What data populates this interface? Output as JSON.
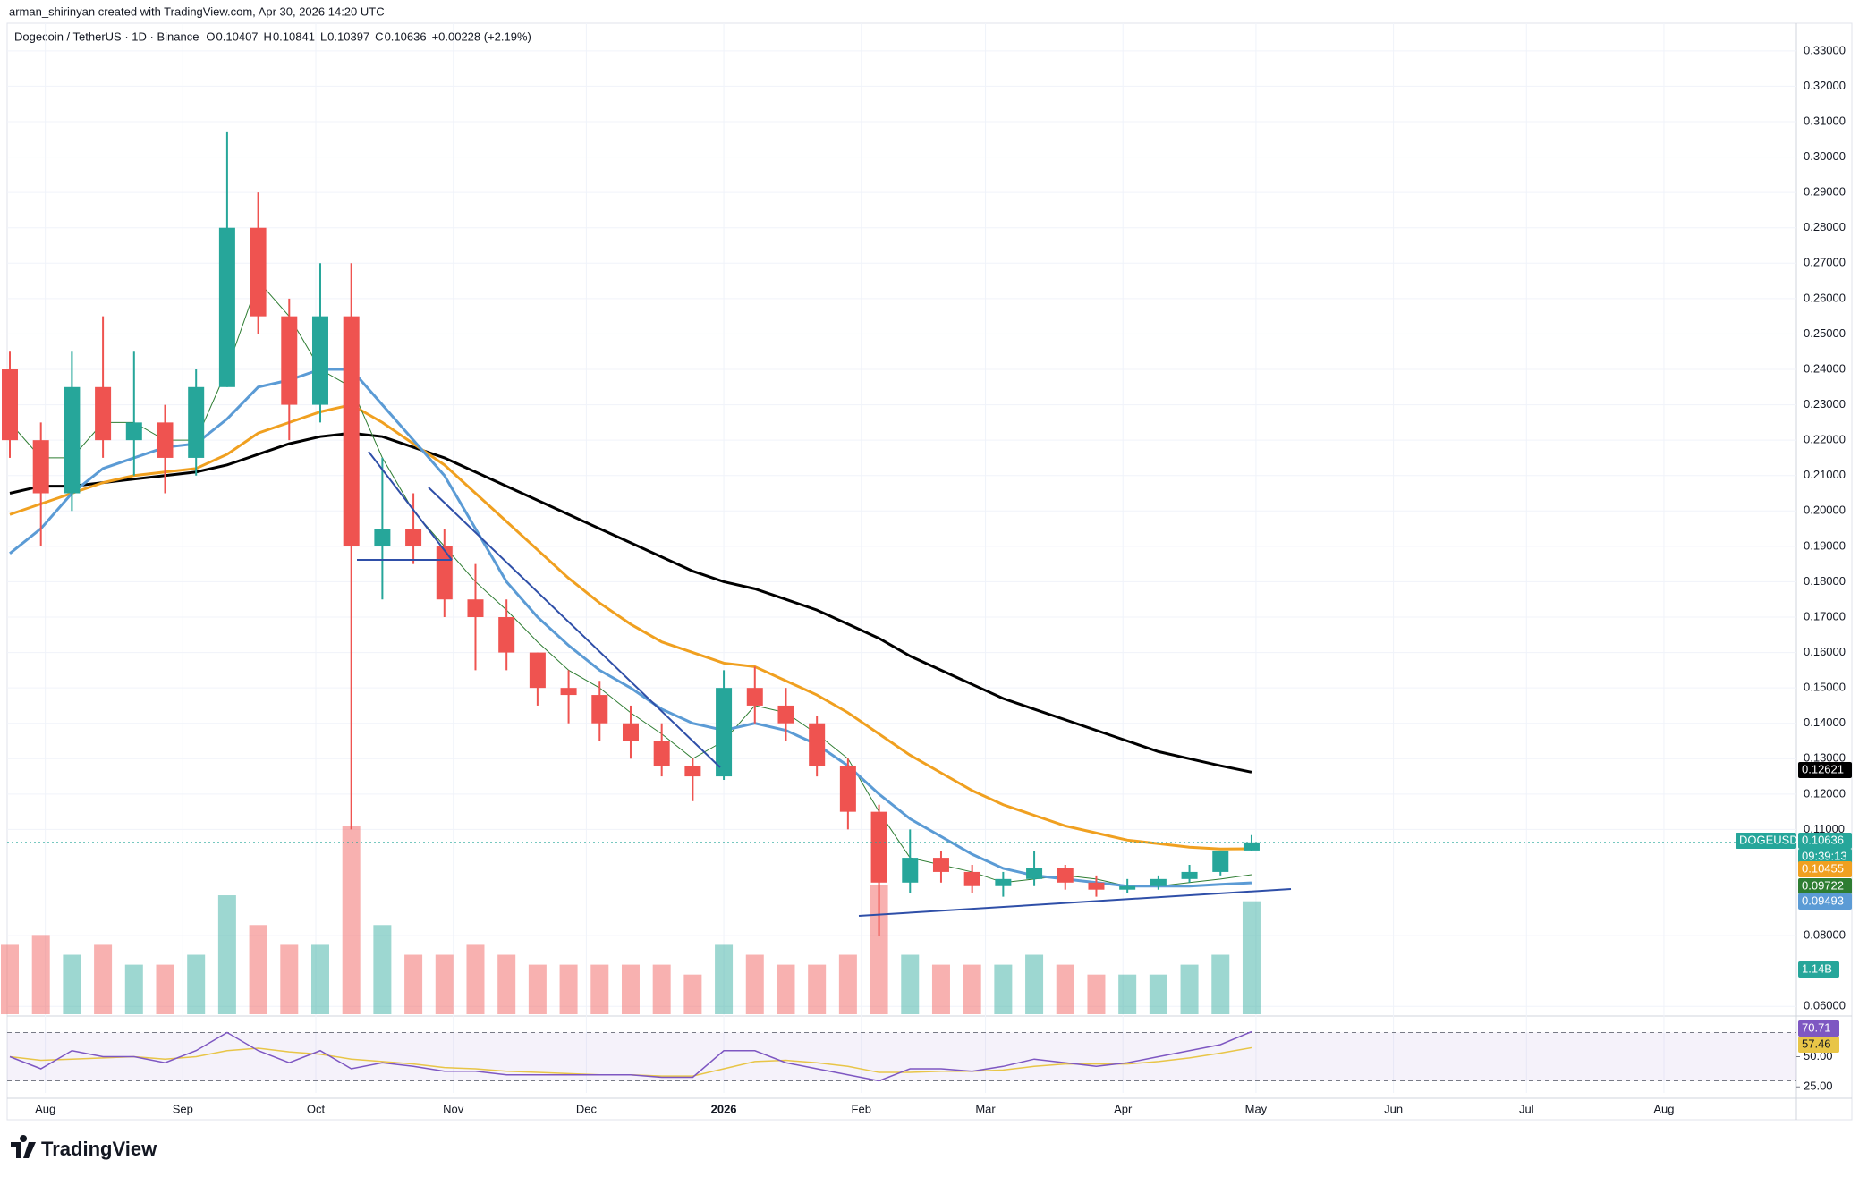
{
  "header": {
    "credit": "arman_shirinyan created with TradingView.com, Apr 30, 2026 14:20 UTC",
    "brand": "TradingView"
  },
  "chart_data": {
    "type": "candlestick",
    "title": "Dogecoin / TetherUS · 1D · Binance",
    "ohlc_letters": [
      "O",
      "H",
      "L",
      "C"
    ],
    "change_label": "+0.00228 (+2.19%)",
    "symbol_tag": "DOGEUSDT",
    "countdown": "09:39:13",
    "months": [
      "Aug",
      "Sep",
      "Oct",
      "Nov",
      "Dec",
      "2026",
      "Feb",
      "Mar",
      "Apr",
      "May",
      "Jun",
      "Jul",
      "Aug"
    ],
    "up_color": "#26a69a",
    "down_color": "#ef5350",
    "grid": true,
    "ylim": [
      0.0578,
      0.3378
    ],
    "yticks": [
      {
        "value": 0.33,
        "label": "0.33000"
      },
      {
        "value": 0.32,
        "label": "0.32000"
      },
      {
        "value": 0.31,
        "label": "0.31000"
      },
      {
        "value": 0.3,
        "label": "0.30000"
      },
      {
        "value": 0.29,
        "label": "0.29000"
      },
      {
        "value": 0.28,
        "label": "0.28000"
      },
      {
        "value": 0.27,
        "label": "0.27000"
      },
      {
        "value": 0.26,
        "label": "0.26000"
      },
      {
        "value": 0.25,
        "label": "0.25000"
      },
      {
        "value": 0.24,
        "label": "0.24000"
      },
      {
        "value": 0.23,
        "label": "0.23000"
      },
      {
        "value": 0.22,
        "label": "0.22000"
      },
      {
        "value": 0.21,
        "label": "0.21000"
      },
      {
        "value": 0.2,
        "label": "0.20000"
      },
      {
        "value": 0.19,
        "label": "0.19000"
      },
      {
        "value": 0.18,
        "label": "0.18000"
      },
      {
        "value": 0.17,
        "label": "0.17000"
      },
      {
        "value": 0.16,
        "label": "0.16000"
      },
      {
        "value": 0.15,
        "label": "0.15000"
      },
      {
        "value": 0.14,
        "label": "0.14000"
      },
      {
        "value": 0.13,
        "label": "0.13000"
      },
      {
        "value": 0.12,
        "label": "0.12000"
      },
      {
        "value": 0.11,
        "label": "0.11000"
      },
      {
        "value": 0.08,
        "label": "0.08000"
      },
      {
        "value": 0.06,
        "label": "0.06000"
      }
    ],
    "candles": [
      [
        0.24,
        0.245,
        0.215,
        0.22
      ],
      [
        0.22,
        0.225,
        0.19,
        0.205
      ],
      [
        0.205,
        0.245,
        0.2,
        0.235
      ],
      [
        0.235,
        0.255,
        0.215,
        0.22
      ],
      [
        0.22,
        0.245,
        0.21,
        0.225
      ],
      [
        0.225,
        0.23,
        0.205,
        0.215
      ],
      [
        0.215,
        0.24,
        0.21,
        0.235
      ],
      [
        0.235,
        0.307,
        0.235,
        0.28
      ],
      [
        0.28,
        0.29,
        0.25,
        0.255
      ],
      [
        0.255,
        0.26,
        0.22,
        0.23
      ],
      [
        0.23,
        0.27,
        0.225,
        0.255
      ],
      [
        0.255,
        0.27,
        0.11,
        0.19
      ],
      [
        0.19,
        0.215,
        0.175,
        0.195
      ],
      [
        0.195,
        0.205,
        0.185,
        0.19
      ],
      [
        0.19,
        0.195,
        0.17,
        0.175
      ],
      [
        0.175,
        0.185,
        0.155,
        0.17
      ],
      [
        0.17,
        0.175,
        0.155,
        0.16
      ],
      [
        0.16,
        0.16,
        0.145,
        0.15
      ],
      [
        0.15,
        0.155,
        0.14,
        0.148
      ],
      [
        0.148,
        0.152,
        0.135,
        0.14
      ],
      [
        0.14,
        0.145,
        0.13,
        0.135
      ],
      [
        0.135,
        0.14,
        0.125,
        0.128
      ],
      [
        0.128,
        0.13,
        0.118,
        0.125
      ],
      [
        0.125,
        0.155,
        0.124,
        0.15
      ],
      [
        0.15,
        0.156,
        0.14,
        0.145
      ],
      [
        0.145,
        0.15,
        0.135,
        0.14
      ],
      [
        0.14,
        0.142,
        0.125,
        0.128
      ],
      [
        0.128,
        0.13,
        0.11,
        0.115
      ],
      [
        0.115,
        0.117,
        0.08,
        0.095
      ],
      [
        0.095,
        0.11,
        0.092,
        0.102
      ],
      [
        0.102,
        0.104,
        0.095,
        0.098
      ],
      [
        0.098,
        0.1,
        0.092,
        0.094
      ],
      [
        0.094,
        0.098,
        0.091,
        0.096
      ],
      [
        0.096,
        0.104,
        0.094,
        0.099
      ],
      [
        0.099,
        0.1,
        0.093,
        0.095
      ],
      [
        0.095,
        0.097,
        0.091,
        0.093
      ],
      [
        0.093,
        0.096,
        0.092,
        0.094
      ],
      [
        0.094,
        0.097,
        0.093,
        0.096
      ],
      [
        0.096,
        0.1,
        0.095,
        0.098
      ],
      [
        0.098,
        0.104,
        0.097,
        0.10407
      ],
      [
        0.10407,
        0.10841,
        0.10397,
        0.10636
      ]
    ],
    "series": [
      {
        "color": "#000000",
        "values": [
          0.205,
          0.207,
          0.207,
          0.208,
          0.209,
          0.21,
          0.211,
          0.213,
          0.216,
          0.219,
          0.221,
          0.222,
          0.221,
          0.218,
          0.215,
          0.211,
          0.207,
          0.203,
          0.199,
          0.195,
          0.191,
          0.187,
          0.183,
          0.18,
          0.178,
          0.175,
          0.172,
          0.168,
          0.164,
          0.159,
          0.155,
          0.151,
          0.147,
          0.144,
          0.141,
          0.138,
          0.135,
          0.132,
          0.13,
          0.128,
          0.12621
        ]
      },
      {
        "color": "#f0a020",
        "values": [
          0.199,
          0.202,
          0.205,
          0.208,
          0.21,
          0.211,
          0.212,
          0.216,
          0.222,
          0.225,
          0.228,
          0.23,
          0.225,
          0.219,
          0.213,
          0.205,
          0.197,
          0.189,
          0.181,
          0.174,
          0.168,
          0.163,
          0.16,
          0.157,
          0.156,
          0.152,
          0.148,
          0.143,
          0.137,
          0.131,
          0.126,
          0.121,
          0.117,
          0.114,
          0.111,
          0.109,
          0.107,
          0.106,
          0.105,
          0.1045,
          0.10455
        ]
      },
      {
        "color": "#2e7d32",
        "values": [
          0.225,
          0.215,
          0.215,
          0.225,
          0.225,
          0.22,
          0.22,
          0.24,
          0.265,
          0.255,
          0.24,
          0.235,
          0.215,
          0.2,
          0.19,
          0.18,
          0.172,
          0.163,
          0.155,
          0.15,
          0.143,
          0.137,
          0.13,
          0.135,
          0.145,
          0.143,
          0.137,
          0.13,
          0.115,
          0.102,
          0.1,
          0.098,
          0.095,
          0.096,
          0.097,
          0.096,
          0.094,
          0.094,
          0.095,
          0.096,
          0.09722
        ]
      },
      {
        "color": "#5b9bd5",
        "values": [
          0.188,
          0.195,
          0.205,
          0.212,
          0.215,
          0.218,
          0.219,
          0.226,
          0.235,
          0.237,
          0.24,
          0.24,
          0.23,
          0.22,
          0.21,
          0.195,
          0.18,
          0.17,
          0.162,
          0.155,
          0.15,
          0.144,
          0.14,
          0.138,
          0.14,
          0.138,
          0.134,
          0.128,
          0.12,
          0.113,
          0.108,
          0.103,
          0.099,
          0.097,
          0.096,
          0.095,
          0.094,
          0.094,
          0.094,
          0.0945,
          0.09493
        ]
      }
    ],
    "volume": {
      "vlim": [
        0,
        10
      ],
      "values": [
        0.7,
        0.8,
        0.6,
        0.7,
        0.5,
        0.5,
        0.6,
        1.2,
        0.9,
        0.7,
        0.7,
        1.9,
        0.9,
        0.6,
        0.6,
        0.7,
        0.6,
        0.5,
        0.5,
        0.5,
        0.5,
        0.5,
        0.4,
        0.7,
        0.6,
        0.5,
        0.5,
        0.6,
        1.3,
        0.6,
        0.5,
        0.5,
        0.5,
        0.6,
        0.5,
        0.4,
        0.4,
        0.4,
        0.5,
        0.6,
        1.14
      ],
      "last_label": "1.14B"
    },
    "rsi": {
      "color": "#7e57c2",
      "ylim": [
        20,
        80
      ],
      "yticks": [
        {
          "value": 25,
          "label": "25.00"
        },
        {
          "value": 50,
          "label": "50.00"
        }
      ],
      "bands": [
        30,
        70
      ],
      "values": [
        50,
        40,
        55,
        50,
        50,
        45,
        55,
        70,
        55,
        45,
        55,
        40,
        45,
        42,
        38,
        38,
        35,
        35,
        35,
        35,
        35,
        33,
        33,
        55,
        55,
        45,
        40,
        35,
        30,
        40,
        40,
        38,
        42,
        48,
        45,
        42,
        45,
        50,
        55,
        60,
        70.71
      ],
      "signal": {
        "color": "#e8c547",
        "values": [
          50,
          47,
          48,
          49,
          50,
          48,
          50,
          55,
          57,
          54,
          52,
          48,
          46,
          44,
          41,
          40,
          38,
          37,
          36,
          35,
          35,
          34,
          34,
          40,
          46,
          47,
          45,
          42,
          37,
          37,
          38,
          38,
          39,
          42,
          44,
          44,
          44,
          46,
          49,
          53,
          57.46
        ]
      }
    }
  }
}
